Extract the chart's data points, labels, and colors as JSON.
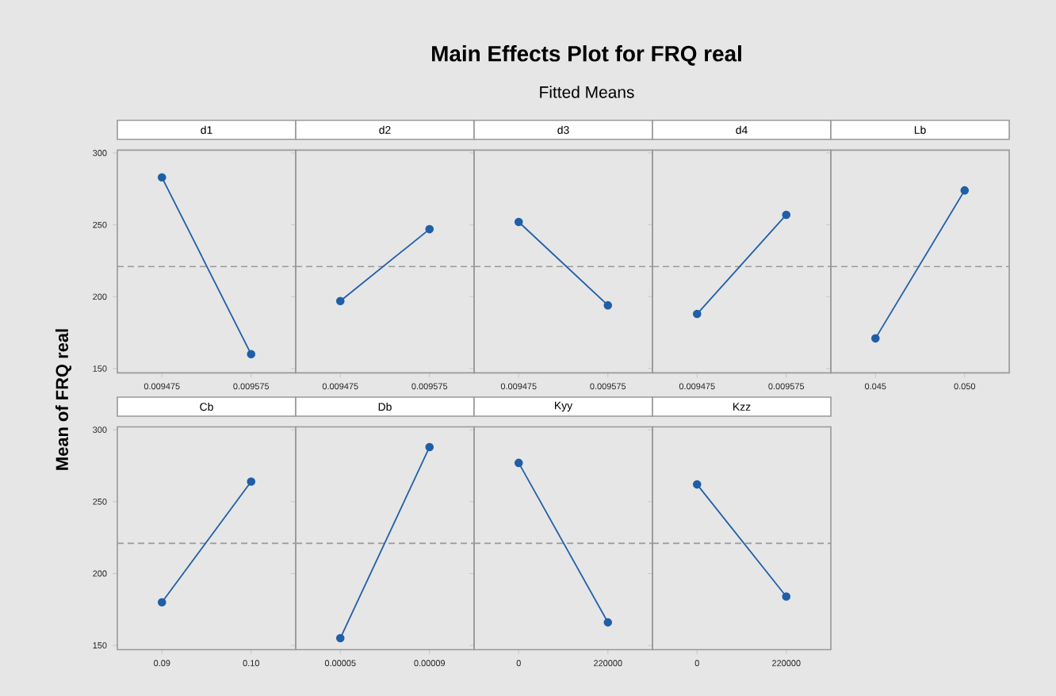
{
  "chart_data": [
    {
      "type": "line",
      "title": "d1",
      "annotations": [
        "Main Effects Plot for FRQ real",
        "Fitted Means"
      ],
      "ylabel": "Mean of FRQ real",
      "categories": [
        "0.009475",
        "0.009575"
      ],
      "values": [
        283,
        160
      ],
      "color": "#1f5fa8",
      "marker": "circle",
      "ylim": [
        147,
        302
      ],
      "yticks": [
        150,
        200,
        250,
        300
      ],
      "ref_lines": [
        {
          "axis": "y",
          "value": 221,
          "color": "#999999",
          "line_style": "dashed"
        }
      ]
    },
    {
      "type": "line",
      "title": "d2",
      "categories": [
        "0.009475",
        "0.009575"
      ],
      "values": [
        197,
        247
      ],
      "color": "#1f5fa8",
      "marker": "circle",
      "ylim": [
        147,
        302
      ],
      "yticks": [
        150,
        200,
        250,
        300
      ],
      "tick_labels": "x",
      "ref_lines": [
        {
          "axis": "y",
          "value": 221,
          "color": "#999999",
          "line_style": "dashed"
        }
      ]
    },
    {
      "type": "line",
      "title": "d3",
      "categories": [
        "0.009475",
        "0.009575"
      ],
      "values": [
        252,
        194
      ],
      "color": "#1f5fa8",
      "marker": "circle",
      "ylim": [
        147,
        302
      ],
      "yticks": [
        150,
        200,
        250,
        300
      ],
      "tick_labels": "x",
      "ref_lines": [
        {
          "axis": "y",
          "value": 221,
          "color": "#999999",
          "line_style": "dashed"
        }
      ]
    },
    {
      "type": "line",
      "title": "d4",
      "categories": [
        "0.009475",
        "0.009575"
      ],
      "values": [
        188,
        257
      ],
      "color": "#1f5fa8",
      "marker": "circle",
      "ylim": [
        147,
        302
      ],
      "yticks": [
        150,
        200,
        250,
        300
      ],
      "tick_labels": "x",
      "ref_lines": [
        {
          "axis": "y",
          "value": 221,
          "color": "#999999",
          "line_style": "dashed"
        }
      ]
    },
    {
      "type": "line",
      "title": "Lb",
      "categories": [
        "0.045",
        "0.050"
      ],
      "values": [
        171,
        274
      ],
      "color": "#1f5fa8",
      "marker": "circle",
      "ylim": [
        147,
        302
      ],
      "yticks": [
        150,
        200,
        250,
        300
      ],
      "tick_labels": "x",
      "ref_lines": [
        {
          "axis": "y",
          "value": 221,
          "color": "#999999",
          "line_style": "dashed"
        }
      ]
    },
    {
      "type": "line",
      "title": "Cb",
      "categories": [
        "0.09",
        "0.10"
      ],
      "values": [
        180,
        264
      ],
      "color": "#1f5fa8",
      "marker": "circle",
      "ylim": [
        147,
        302
      ],
      "yticks": [
        150,
        200,
        250,
        300
      ],
      "ref_lines": [
        {
          "axis": "y",
          "value": 221,
          "color": "#999999",
          "line_style": "dashed"
        }
      ]
    },
    {
      "type": "line",
      "title": "Db",
      "categories": [
        "0.00005",
        "0.00009"
      ],
      "values": [
        155,
        288
      ],
      "color": "#1f5fa8",
      "marker": "circle",
      "ylim": [
        147,
        302
      ],
      "yticks": [
        150,
        200,
        250,
        300
      ],
      "tick_labels": "x",
      "ref_lines": [
        {
          "axis": "y",
          "value": 221,
          "color": "#999999",
          "line_style": "dashed"
        }
      ]
    },
    {
      "type": "line",
      "title": "Kyy",
      "categories": [
        "0",
        "220000"
      ],
      "values": [
        277,
        166
      ],
      "color": "#1f5fa8",
      "marker": "circle",
      "ylim": [
        147,
        302
      ],
      "yticks": [
        150,
        200,
        250,
        300
      ],
      "tick_labels": "x",
      "ref_lines": [
        {
          "axis": "y",
          "value": 221,
          "color": "#999999",
          "line_style": "dashed"
        }
      ]
    },
    {
      "type": "line",
      "title": "Kzz",
      "categories": [
        "0",
        "220000"
      ],
      "values": [
        262,
        184
      ],
      "color": "#1f5fa8",
      "marker": "circle",
      "ylim": [
        147,
        302
      ],
      "yticks": [
        150,
        200,
        250,
        300
      ],
      "tick_labels": "x",
      "ref_lines": [
        {
          "axis": "y",
          "value": 221,
          "color": "#999999",
          "line_style": "dashed"
        }
      ]
    }
  ]
}
